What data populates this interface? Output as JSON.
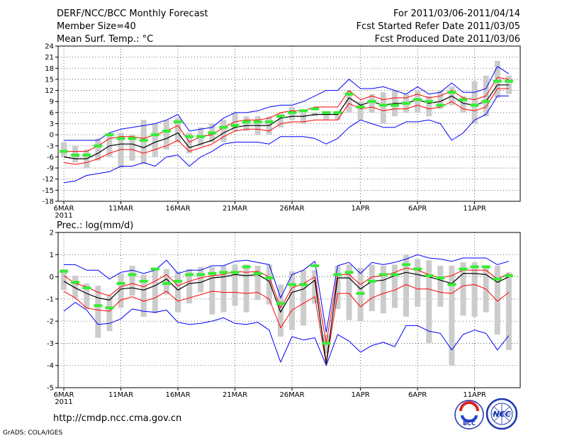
{
  "header": {
    "title": "DERF/NCC/BCC Monthly Forecast",
    "member_size": "Member Size=40",
    "variable": "Mean Surf. Temp.: °C",
    "period": "For 2011/03/06-2011/04/14",
    "start_date": "Fcst Started Refer Date 2011/03/05",
    "produced_date": "Fcst Produced Date 2011/03/06"
  },
  "footer": {
    "url": "http://cmdp.ncc.cma.gov.cn",
    "credit": "GrADS: COLA/IGES",
    "logo_bcc": "BCC",
    "logo_ncc": "NCC"
  },
  "colors": {
    "envelope": "#0000ff",
    "spread": "#ff0000",
    "mean": "#000000",
    "observed": "#33ee33",
    "bar": "#cccccc"
  },
  "chart_data": [
    {
      "type": "line",
      "title": "Mean Surf. Temp.: °C",
      "xlabel": "",
      "ylabel": "°C",
      "ylim": [
        -18,
        24
      ],
      "yticks": [
        -18,
        -15,
        -12,
        -9,
        -6,
        -3,
        0,
        3,
        6,
        9,
        12,
        15,
        18,
        21,
        24
      ],
      "days": 40,
      "xtick_labels": [
        {
          "day": 0,
          "label": "6MAR"
        },
        {
          "day": 5,
          "label": "11MAR"
        },
        {
          "day": 10,
          "label": "16MAR"
        },
        {
          "day": 15,
          "label": "21MAR"
        },
        {
          "day": 20,
          "label": "26MAR"
        },
        {
          "day": 26,
          "label": "1APR"
        },
        {
          "day": 31,
          "label": "6APR"
        },
        {
          "day": 36,
          "label": "11APR"
        }
      ],
      "year_label": "2011",
      "series": [
        {
          "name": "max",
          "values": [
            -1.5,
            -1.5,
            -1.5,
            -1.5,
            0.5,
            1.5,
            2,
            2.5,
            3,
            4,
            5.5,
            1,
            1.5,
            2,
            4.5,
            6,
            6,
            6.5,
            7.5,
            8,
            8,
            9,
            10.5,
            12,
            12,
            15,
            12.5,
            12.5,
            13,
            12,
            11,
            13,
            11,
            11.5,
            14,
            11.5,
            11.5,
            12.5,
            18.5,
            16.5
          ]
        },
        {
          "name": "spread_high",
          "values": [
            -4.5,
            -4.5,
            -4.5,
            -3,
            -1,
            -0.5,
            -0.5,
            -1,
            0,
            1,
            2.5,
            -2,
            -0.5,
            0,
            2,
            3.5,
            4,
            4,
            4.5,
            6,
            6.5,
            6.5,
            7.5,
            7.5,
            7.5,
            12,
            9.5,
            10.5,
            9.5,
            10,
            10,
            11,
            10,
            10.5,
            12,
            10,
            9.5,
            10.5,
            15.5,
            15
          ]
        },
        {
          "name": "mean",
          "values": [
            -6,
            -6.5,
            -6.5,
            -5,
            -3,
            -2.5,
            -2.5,
            -3.5,
            -2,
            -1,
            0.5,
            -3.5,
            -2.5,
            -1.5,
            0.5,
            2,
            2.5,
            2.5,
            2.5,
            4.5,
            5,
            5,
            5.5,
            5.5,
            5.5,
            10,
            8,
            9,
            8,
            8.5,
            8.5,
            9.5,
            8.5,
            9,
            10.5,
            8.5,
            8,
            9,
            13.5,
            13.5
          ]
        },
        {
          "name": "spread_low",
          "values": [
            -7.5,
            -8,
            -7.5,
            -6.5,
            -5,
            -4,
            -4,
            -5,
            -4,
            -3,
            -1.5,
            -4.5,
            -3.5,
            -2.5,
            -0.5,
            1,
            1.5,
            1.5,
            1,
            3,
            3.5,
            3.5,
            4,
            4,
            4,
            8.5,
            7,
            7.5,
            6.5,
            7,
            7,
            8,
            7,
            7.5,
            9,
            7,
            6.5,
            7.5,
            12.5,
            12.5
          ]
        },
        {
          "name": "min",
          "values": [
            -13,
            -12.5,
            -11,
            -10.5,
            -10,
            -8.5,
            -8.5,
            -7.5,
            -8.5,
            -6,
            -5.5,
            -8.5,
            -6,
            -4.5,
            -2.5,
            -2,
            -2,
            -2,
            -2.5,
            -0.5,
            -0.5,
            -0.5,
            -1,
            -2.5,
            -1,
            2,
            4,
            3,
            2,
            2,
            3.5,
            3.5,
            4,
            3,
            -1.5,
            0.5,
            4,
            5.5,
            10.5,
            10.5
          ]
        },
        {
          "name": "observed",
          "values": [
            -4.5,
            -5.5,
            -5.5,
            -3,
            0,
            -1,
            -1,
            -1.5,
            0,
            1,
            3.5,
            -0.5,
            -0.5,
            0.5,
            2,
            2.5,
            3.5,
            3.5,
            3.5,
            5,
            6,
            6.5,
            7,
            6,
            6,
            11,
            7.5,
            9,
            8,
            8,
            8.5,
            9.5,
            9,
            8,
            11.5,
            9.5,
            8,
            9,
            14.5,
            14.5
          ]
        },
        {
          "name": "bar_top",
          "values": [
            -2,
            -3,
            -4,
            -1,
            0,
            0.5,
            0,
            4,
            3,
            4,
            4.5,
            0.5,
            2,
            3,
            4,
            6,
            5,
            5,
            5,
            6,
            7.5,
            6,
            6,
            6,
            6,
            12,
            9,
            11,
            11.5,
            12,
            11,
            12,
            10.5,
            12,
            13,
            10.5,
            14.5,
            16,
            20,
            16
          ]
        },
        {
          "name": "bar_bottom",
          "values": [
            -6,
            -7.5,
            -9,
            -7,
            -6,
            -9,
            -7,
            -8,
            -6,
            -4,
            -2,
            -5,
            -3,
            -2,
            -2,
            1,
            1,
            0,
            0,
            2,
            4,
            3,
            5,
            4,
            4,
            6,
            4,
            6,
            3,
            5,
            6,
            6,
            5,
            7,
            8,
            6,
            3,
            5,
            10,
            11
          ]
        }
      ]
    },
    {
      "type": "line",
      "title": "Prec.: log(mm/d)",
      "xlabel": "",
      "ylabel": "log(mm/d)",
      "ylim": [
        -5,
        2
      ],
      "yticks": [
        -5,
        -4,
        -3,
        -2,
        -1,
        0,
        1,
        2
      ],
      "days": 40,
      "xtick_labels": [
        {
          "day": 0,
          "label": "6MAR"
        },
        {
          "day": 5,
          "label": "11MAR"
        },
        {
          "day": 10,
          "label": "16MAR"
        },
        {
          "day": 15,
          "label": "21MAR"
        },
        {
          "day": 20,
          "label": "26MAR"
        },
        {
          "day": 26,
          "label": "1APR"
        },
        {
          "day": 31,
          "label": "6APR"
        },
        {
          "day": 36,
          "label": "11APR"
        }
      ],
      "year_label": "2011",
      "series": [
        {
          "name": "max",
          "values": [
            0.55,
            0.55,
            0.3,
            0.3,
            -0.1,
            0.2,
            0.3,
            0.15,
            0.3,
            0.75,
            0.15,
            0.3,
            0.3,
            0.5,
            0.5,
            0.7,
            0.75,
            0.65,
            0.55,
            -0.95,
            0.1,
            0.3,
            0.7,
            -2.5,
            0.5,
            0.65,
            0.15,
            0.65,
            0.55,
            0.65,
            0.8,
            1,
            0.85,
            0.8,
            0.7,
            0.85,
            0.85,
            0.85,
            0.55,
            0.7
          ]
        },
        {
          "name": "spread_high",
          "values": [
            0.05,
            -0.3,
            -0.45,
            -0.7,
            -0.85,
            -0.45,
            -0.3,
            -0.45,
            -0.2,
            0.1,
            -0.4,
            -0.2,
            -0.05,
            0.05,
            0.1,
            0.25,
            0.2,
            0.25,
            0,
            -1.4,
            -0.5,
            -0.3,
            0,
            -3,
            0.1,
            0.1,
            -0.35,
            0,
            0.05,
            0.2,
            0.4,
            0.3,
            0.1,
            -0.05,
            0.05,
            0.3,
            0.3,
            0.3,
            -0.1,
            0.15
          ]
        },
        {
          "name": "mean",
          "values": [
            -0.2,
            -0.5,
            -0.75,
            -0.95,
            -1.05,
            -0.55,
            -0.5,
            -0.6,
            -0.4,
            -0.1,
            -0.6,
            -0.3,
            -0.25,
            -0.05,
            0,
            0.1,
            0.05,
            0.1,
            -0.2,
            -1.6,
            -0.7,
            -0.55,
            -0.15,
            -3.9,
            -0.05,
            -0.05,
            -0.55,
            -0.2,
            -0.15,
            0.05,
            0.2,
            0.1,
            0,
            -0.15,
            -0.3,
            0.15,
            0.15,
            0.1,
            -0.25,
            0
          ]
        },
        {
          "name": "spread_low",
          "values": [
            -0.65,
            -0.95,
            -1.4,
            -1.5,
            -1.55,
            -1.05,
            -0.9,
            -1.1,
            -0.95,
            -0.65,
            -1.1,
            -0.95,
            -0.8,
            -0.65,
            -0.7,
            -0.7,
            -0.75,
            -0.7,
            -1,
            -2.3,
            -1.5,
            -1.2,
            -0.9,
            -3.95,
            -0.75,
            -0.75,
            -1.35,
            -0.95,
            -0.75,
            -0.6,
            -0.35,
            -0.55,
            -0.55,
            -0.7,
            -0.75,
            -0.4,
            -0.35,
            -0.55,
            -1.1,
            -0.7
          ]
        },
        {
          "name": "min",
          "values": [
            -1.55,
            -1.15,
            -1.5,
            -2.15,
            -2.1,
            -1.9,
            -1.45,
            -1.55,
            -1.6,
            -1.5,
            -2.05,
            -2.15,
            -2.1,
            -2,
            -1.85,
            -2.1,
            -2.15,
            -2.05,
            -2.4,
            -3.85,
            -2.7,
            -2.85,
            -2.75,
            -4,
            -2.6,
            -2.9,
            -3.4,
            -3.1,
            -2.95,
            -3.15,
            -2.2,
            -2.2,
            -2.45,
            -2.55,
            -3.3,
            -2.6,
            -2.4,
            -2.55,
            -3.3,
            -2.65
          ]
        },
        {
          "name": "observed",
          "values": [
            0.25,
            -0.25,
            -0.5,
            -1.3,
            -1.4,
            -0.3,
            0.1,
            -0.2,
            0.35,
            -0.3,
            -0.2,
            0.1,
            0.1,
            0.15,
            0.2,
            0.2,
            0.45,
            0.15,
            -0.05,
            -1.2,
            -0.35,
            -0.35,
            0.5,
            -3.0,
            0.1,
            0.2,
            -0.75,
            -0.2,
            0.1,
            0.1,
            0.55,
            0.35,
            0.05,
            -0.05,
            -0.35,
            0.35,
            0.45,
            0.45,
            -0.1,
            0.05
          ]
        },
        {
          "name": "bar_top",
          "values": [
            0.35,
            0.05,
            -0.3,
            -0.4,
            -0.85,
            0.15,
            0.5,
            0.1,
            0.35,
            0.35,
            0.25,
            0.35,
            0.45,
            0.45,
            0.5,
            0.55,
            0.55,
            0.5,
            0.55,
            -0.35,
            0.25,
            0.3,
            0.3,
            -2.6,
            0.5,
            0.55,
            0.4,
            0.55,
            0.5,
            0.55,
            1,
            0.8,
            0.75,
            0.5,
            0.5,
            0.65,
            0.65,
            0.5,
            0.5,
            0.2
          ]
        },
        {
          "name": "bar_bottom",
          "values": [
            -0.6,
            -0.95,
            -1.45,
            -2.75,
            -2.45,
            -1.4,
            -0.85,
            -1.8,
            -1.65,
            -0.8,
            -1.6,
            -1.2,
            -0.7,
            -1.7,
            -1.6,
            -1.3,
            -1.6,
            -1.05,
            -1.25,
            -2.7,
            -2.4,
            -2.2,
            -1.2,
            -3.45,
            -1.45,
            -1.95,
            -2,
            -1.55,
            -1.65,
            -1.4,
            -1.8,
            -1.35,
            -3,
            -1.35,
            -4,
            -1.75,
            -1.8,
            -1.6,
            -2.6,
            -3.3
          ]
        }
      ]
    }
  ]
}
